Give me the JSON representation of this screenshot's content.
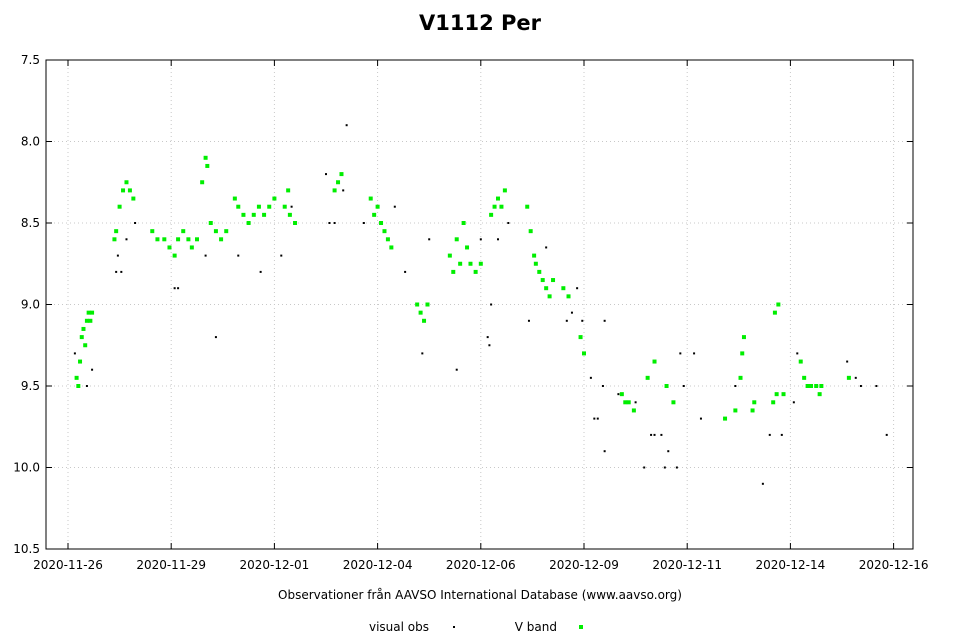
{
  "chart_data": {
    "type": "scatter",
    "title": "V1112 Per",
    "xlabel": "Observationer från AAVSO International Database (www.aavso.org)",
    "ylabel": "",
    "ylim_inverted": [
      10.5,
      7.5
    ],
    "y_ticks": [
      "7.5",
      "8.0",
      "8.5",
      "9.0",
      "9.5",
      "10.0",
      "10.5"
    ],
    "x_tick_labels": [
      "2020-11-26",
      "2020-11-29",
      "2020-12-01",
      "2020-12-04",
      "2020-12-06",
      "2020-12-09",
      "2020-12-11",
      "2020-12-14",
      "2020-12-16"
    ],
    "x_range_days": [
      0,
      23.8
    ],
    "x_tick_days": [
      0,
      3.0,
      6.0,
      9.0,
      12.0,
      15.0,
      18.0,
      21.0,
      24.0
    ],
    "legend": {
      "position": "bottom",
      "entries": [
        "visual obs",
        "V band"
      ]
    },
    "colors": {
      "visual": "#000000",
      "vband": "#00ee00"
    },
    "series": [
      {
        "name": "V band",
        "points": [
          [
            0.25,
            9.45
          ],
          [
            0.3,
            9.5
          ],
          [
            0.35,
            9.35
          ],
          [
            0.4,
            9.2
          ],
          [
            0.45,
            9.15
          ],
          [
            0.5,
            9.25
          ],
          [
            0.55,
            9.1
          ],
          [
            0.6,
            9.05
          ],
          [
            0.65,
            9.1
          ],
          [
            0.7,
            9.05
          ],
          [
            1.35,
            8.6
          ],
          [
            1.4,
            8.55
          ],
          [
            1.5,
            8.4
          ],
          [
            1.6,
            8.3
          ],
          [
            1.7,
            8.25
          ],
          [
            1.8,
            8.3
          ],
          [
            1.9,
            8.35
          ],
          [
            2.45,
            8.55
          ],
          [
            2.6,
            8.6
          ],
          [
            2.8,
            8.6
          ],
          [
            2.95,
            8.65
          ],
          [
            3.1,
            8.7
          ],
          [
            3.2,
            8.6
          ],
          [
            3.35,
            8.55
          ],
          [
            3.5,
            8.6
          ],
          [
            3.6,
            8.65
          ],
          [
            3.75,
            8.6
          ],
          [
            3.9,
            8.25
          ],
          [
            4.0,
            8.1
          ],
          [
            4.05,
            8.15
          ],
          [
            4.15,
            8.5
          ],
          [
            4.3,
            8.55
          ],
          [
            4.45,
            8.6
          ],
          [
            4.6,
            8.55
          ],
          [
            4.85,
            8.35
          ],
          [
            4.95,
            8.4
          ],
          [
            5.1,
            8.45
          ],
          [
            5.25,
            8.5
          ],
          [
            5.4,
            8.45
          ],
          [
            5.55,
            8.4
          ],
          [
            5.7,
            8.45
          ],
          [
            5.85,
            8.4
          ],
          [
            6.0,
            8.35
          ],
          [
            6.3,
            8.4
          ],
          [
            6.4,
            8.3
          ],
          [
            6.45,
            8.45
          ],
          [
            6.6,
            8.5
          ],
          [
            7.75,
            8.3
          ],
          [
            7.85,
            8.25
          ],
          [
            7.95,
            8.2
          ],
          [
            8.8,
            8.35
          ],
          [
            8.9,
            8.45
          ],
          [
            9.0,
            8.4
          ],
          [
            9.1,
            8.5
          ],
          [
            9.2,
            8.55
          ],
          [
            9.3,
            8.6
          ],
          [
            9.4,
            8.65
          ],
          [
            10.15,
            9.0
          ],
          [
            10.25,
            9.05
          ],
          [
            10.35,
            9.1
          ],
          [
            10.45,
            9.0
          ],
          [
            11.1,
            8.7
          ],
          [
            11.2,
            8.8
          ],
          [
            11.3,
            8.6
          ],
          [
            11.4,
            8.75
          ],
          [
            11.5,
            8.5
          ],
          [
            11.6,
            8.65
          ],
          [
            11.7,
            8.75
          ],
          [
            11.85,
            8.8
          ],
          [
            12.0,
            8.75
          ],
          [
            12.3,
            8.45
          ],
          [
            12.4,
            8.4
          ],
          [
            12.5,
            8.35
          ],
          [
            12.6,
            8.4
          ],
          [
            12.7,
            8.3
          ],
          [
            13.35,
            8.4
          ],
          [
            13.45,
            8.55
          ],
          [
            13.55,
            8.7
          ],
          [
            13.6,
            8.75
          ],
          [
            13.7,
            8.8
          ],
          [
            13.8,
            8.85
          ],
          [
            13.9,
            8.9
          ],
          [
            14.0,
            8.95
          ],
          [
            14.1,
            8.85
          ],
          [
            14.4,
            8.9
          ],
          [
            14.55,
            8.95
          ],
          [
            14.9,
            9.2
          ],
          [
            15.0,
            9.3
          ],
          [
            16.1,
            9.55
          ],
          [
            16.2,
            9.6
          ],
          [
            16.3,
            9.6
          ],
          [
            16.45,
            9.65
          ],
          [
            16.85,
            9.45
          ],
          [
            17.05,
            9.35
          ],
          [
            17.4,
            9.5
          ],
          [
            17.6,
            9.6
          ],
          [
            19.1,
            9.7
          ],
          [
            19.4,
            9.65
          ],
          [
            19.55,
            9.45
          ],
          [
            19.6,
            9.3
          ],
          [
            19.65,
            9.2
          ],
          [
            19.9,
            9.65
          ],
          [
            19.95,
            9.6
          ],
          [
            20.5,
            9.6
          ],
          [
            20.6,
            9.55
          ],
          [
            20.55,
            9.05
          ],
          [
            20.65,
            9.0
          ],
          [
            20.8,
            9.55
          ],
          [
            21.3,
            9.35
          ],
          [
            21.4,
            9.45
          ],
          [
            21.5,
            9.5
          ],
          [
            21.6,
            9.5
          ],
          [
            21.75,
            9.5
          ],
          [
            21.85,
            9.55
          ],
          [
            21.9,
            9.5
          ],
          [
            22.7,
            9.45
          ]
        ]
      },
      {
        "name": "visual obs",
        "points": [
          [
            0.2,
            9.3
          ],
          [
            0.55,
            9.5
          ],
          [
            0.7,
            9.4
          ],
          [
            1.4,
            8.8
          ],
          [
            1.45,
            8.7
          ],
          [
            1.55,
            8.8
          ],
          [
            1.7,
            8.6
          ],
          [
            1.95,
            8.5
          ],
          [
            3.1,
            8.9
          ],
          [
            3.2,
            8.9
          ],
          [
            4.0,
            8.7
          ],
          [
            4.3,
            9.2
          ],
          [
            4.95,
            8.7
          ],
          [
            5.6,
            8.8
          ],
          [
            6.2,
            8.7
          ],
          [
            6.5,
            8.4
          ],
          [
            7.5,
            8.2
          ],
          [
            7.6,
            8.5
          ],
          [
            7.75,
            8.5
          ],
          [
            8.0,
            8.3
          ],
          [
            8.1,
            7.9
          ],
          [
            8.6,
            8.5
          ],
          [
            9.5,
            8.4
          ],
          [
            9.8,
            8.8
          ],
          [
            10.3,
            9.3
          ],
          [
            10.5,
            8.6
          ],
          [
            11.3,
            9.4
          ],
          [
            12.0,
            8.6
          ],
          [
            12.2,
            9.2
          ],
          [
            12.25,
            9.25
          ],
          [
            12.3,
            9.0
          ],
          [
            12.5,
            8.6
          ],
          [
            12.8,
            8.5
          ],
          [
            13.4,
            9.1
          ],
          [
            13.9,
            8.65
          ],
          [
            14.5,
            9.1
          ],
          [
            14.65,
            9.05
          ],
          [
            14.8,
            8.9
          ],
          [
            14.95,
            9.1
          ],
          [
            15.2,
            9.45
          ],
          [
            15.3,
            9.7
          ],
          [
            15.4,
            9.7
          ],
          [
            15.6,
            9.9
          ],
          [
            15.55,
            9.5
          ],
          [
            15.6,
            9.1
          ],
          [
            16.0,
            9.55
          ],
          [
            16.5,
            9.6
          ],
          [
            16.75,
            10.0
          ],
          [
            16.95,
            9.8
          ],
          [
            17.05,
            9.8
          ],
          [
            17.25,
            9.8
          ],
          [
            17.35,
            10.0
          ],
          [
            17.45,
            9.9
          ],
          [
            17.7,
            10.0
          ],
          [
            17.8,
            9.3
          ],
          [
            17.9,
            9.5
          ],
          [
            18.2,
            9.3
          ],
          [
            18.4,
            9.7
          ],
          [
            19.4,
            9.5
          ],
          [
            20.2,
            10.1
          ],
          [
            20.4,
            9.8
          ],
          [
            20.75,
            9.8
          ],
          [
            21.1,
            9.6
          ],
          [
            21.2,
            9.3
          ],
          [
            22.65,
            9.35
          ],
          [
            22.9,
            9.45
          ],
          [
            23.05,
            9.5
          ],
          [
            23.5,
            9.5
          ],
          [
            23.8,
            9.8
          ]
        ]
      }
    ]
  }
}
